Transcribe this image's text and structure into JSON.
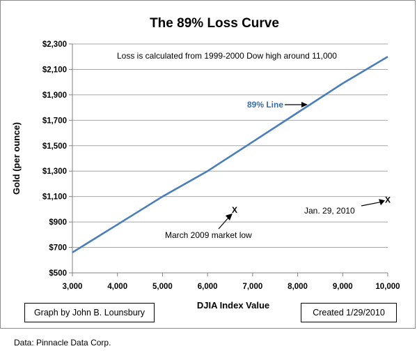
{
  "chart_data": {
    "type": "line",
    "title": "The 89% Loss Curve",
    "xlabel": "DJIA Index Value",
    "ylabel": "Gold (per ounce)",
    "xlim": [
      3000,
      10000
    ],
    "ylim": [
      500,
      2300
    ],
    "x_ticks": [
      "3,000",
      "4,000",
      "5,000",
      "6,000",
      "7,000",
      "8,000",
      "9,000",
      "10,000"
    ],
    "y_ticks": [
      "$2,300",
      "$2,100",
      "$1,900",
      "$1,700",
      "$1,500",
      "$1,300",
      "$1,100",
      "$900",
      "$700",
      "$500"
    ],
    "grid": true,
    "line_color": "#4a7ebb",
    "series": [
      {
        "name": "89% Line",
        "x": [
          3000,
          4000,
          5000,
          6000,
          7000,
          8000,
          9000,
          10000
        ],
        "y": [
          660,
          880,
          1100,
          1300,
          1530,
          1760,
          1990,
          2200
        ]
      }
    ],
    "annotations": {
      "loss_note": "Loss is calculated from 1999-2000  Dow high around 11,000",
      "line_label": "89% Line",
      "points": [
        {
          "marker": "X",
          "x": 6600,
          "y": 1000,
          "label": "March 2009  market low"
        },
        {
          "marker": "X",
          "x": 10000,
          "y": 1080,
          "label": "Jan. 29, 2010"
        }
      ]
    }
  },
  "credit_left": "Graph by John B. Lounsbury",
  "credit_right": "Created 1/29/2010",
  "source": "Data:  Pinnacle Data Corp."
}
